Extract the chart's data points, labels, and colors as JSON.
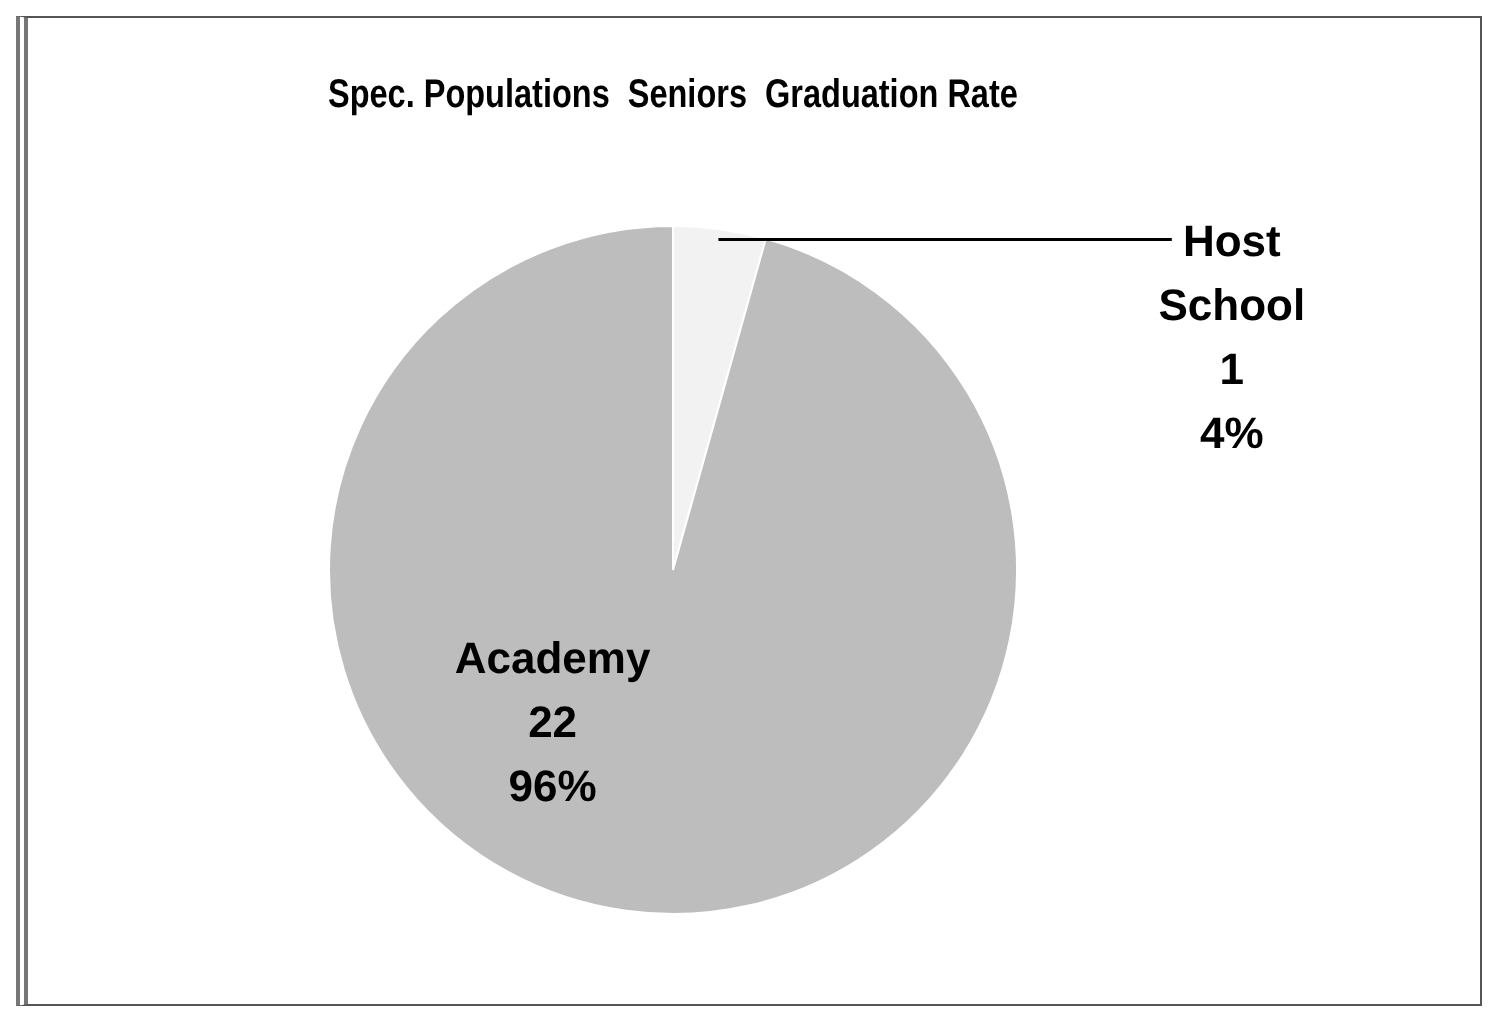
{
  "chart_data": {
    "type": "pie",
    "title": "Spec. Populations  Seniors  Graduation Rate",
    "categories": [
      "Host School",
      "Academy"
    ],
    "values": [
      1,
      22
    ],
    "colors": [
      "#f2f2f2",
      "#bdbdbd"
    ],
    "value_labels": [
      "1\n4%",
      "22\n96%"
    ],
    "legend": false
  }
}
